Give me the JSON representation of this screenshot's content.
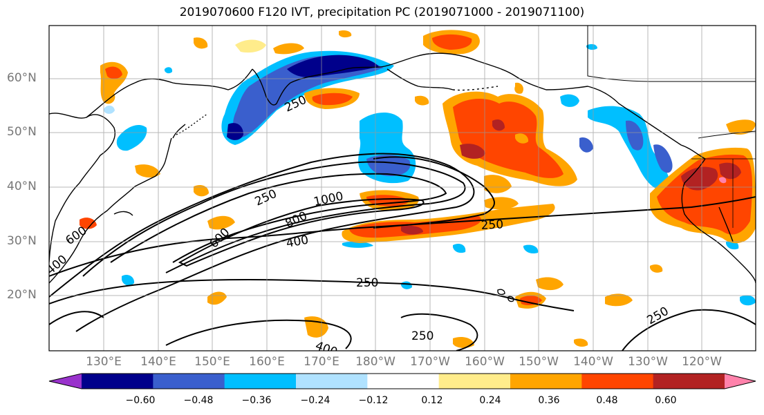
{
  "title": "2019070600 F120 IVT, precipitation PC (2019071000 - 2019071100)",
  "lat_labels": [
    "60°N",
    "50°N",
    "40°N",
    "30°N",
    "20°N"
  ],
  "lon_labels": [
    "130°E",
    "140°E",
    "150°E",
    "160°E",
    "170°E",
    "180°W",
    "170°W",
    "160°W",
    "150°W",
    "140°W",
    "130°W",
    "120°W"
  ],
  "colorbar": {
    "ticks": [
      "−0.60",
      "−0.48",
      "−0.36",
      "−0.24",
      "−0.12",
      "0.12",
      "0.24",
      "0.36",
      "0.48",
      "0.60"
    ],
    "colors": [
      "#9932CC",
      "#00008B",
      "#3A5FCD",
      "#00BFFF",
      "#B0E2FF",
      "#FFFFFF",
      "#FFEC8B",
      "#FFA500",
      "#FF4500",
      "#B22222",
      "#FF82AB"
    ]
  },
  "contour_labels": [
    "250",
    "600",
    "250",
    "1000",
    "800",
    "400",
    "250",
    "250",
    "250",
    "400",
    "250",
    "600",
    "400",
    "500"
  ]
}
